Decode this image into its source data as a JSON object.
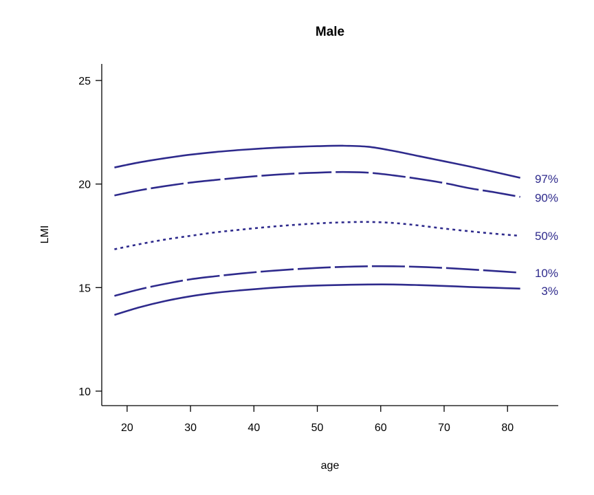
{
  "chart_data": {
    "type": "line",
    "title": "Male",
    "xlabel": "age",
    "ylabel": "LMI",
    "xlim": [
      16,
      88
    ],
    "ylim": [
      9.3,
      25.8
    ],
    "xticks": [
      20,
      30,
      40,
      50,
      60,
      70,
      80
    ],
    "yticks": [
      10,
      15,
      20,
      25
    ],
    "grid": false,
    "legend": "none",
    "series_color": "#2e2a8c",
    "x": [
      18,
      22,
      26,
      30,
      34,
      38,
      42,
      46,
      50,
      54,
      58,
      62,
      66,
      70,
      74,
      78,
      82
    ],
    "series": [
      {
        "name": "97%",
        "line_style": "solid",
        "values": [
          20.8,
          21.05,
          21.25,
          21.42,
          21.55,
          21.65,
          21.73,
          21.79,
          21.83,
          21.85,
          21.8,
          21.6,
          21.35,
          21.1,
          20.85,
          20.58,
          20.3
        ]
      },
      {
        "name": "90%",
        "line_style": "long-dash",
        "values": [
          19.45,
          19.7,
          19.9,
          20.07,
          20.2,
          20.32,
          20.42,
          20.5,
          20.55,
          20.58,
          20.55,
          20.42,
          20.25,
          20.05,
          19.8,
          19.6,
          19.38
        ]
      },
      {
        "name": "50%",
        "line_style": "dotted",
        "values": [
          16.85,
          17.1,
          17.32,
          17.5,
          17.67,
          17.8,
          17.92,
          18.02,
          18.1,
          18.15,
          18.17,
          18.12,
          18.0,
          17.85,
          17.72,
          17.6,
          17.5
        ]
      },
      {
        "name": "10%",
        "line_style": "long-dash",
        "values": [
          14.6,
          14.92,
          15.18,
          15.4,
          15.55,
          15.68,
          15.79,
          15.88,
          15.95,
          16.0,
          16.03,
          16.03,
          16.0,
          15.95,
          15.88,
          15.8,
          15.72
        ]
      },
      {
        "name": "3%",
        "line_style": "solid",
        "values": [
          13.68,
          14.05,
          14.35,
          14.58,
          14.75,
          14.87,
          14.97,
          15.05,
          15.1,
          15.13,
          15.15,
          15.15,
          15.12,
          15.08,
          15.03,
          14.99,
          14.95
        ]
      }
    ],
    "series_label_values": [
      20.25,
      19.35,
      17.5,
      15.7,
      14.85
    ]
  }
}
